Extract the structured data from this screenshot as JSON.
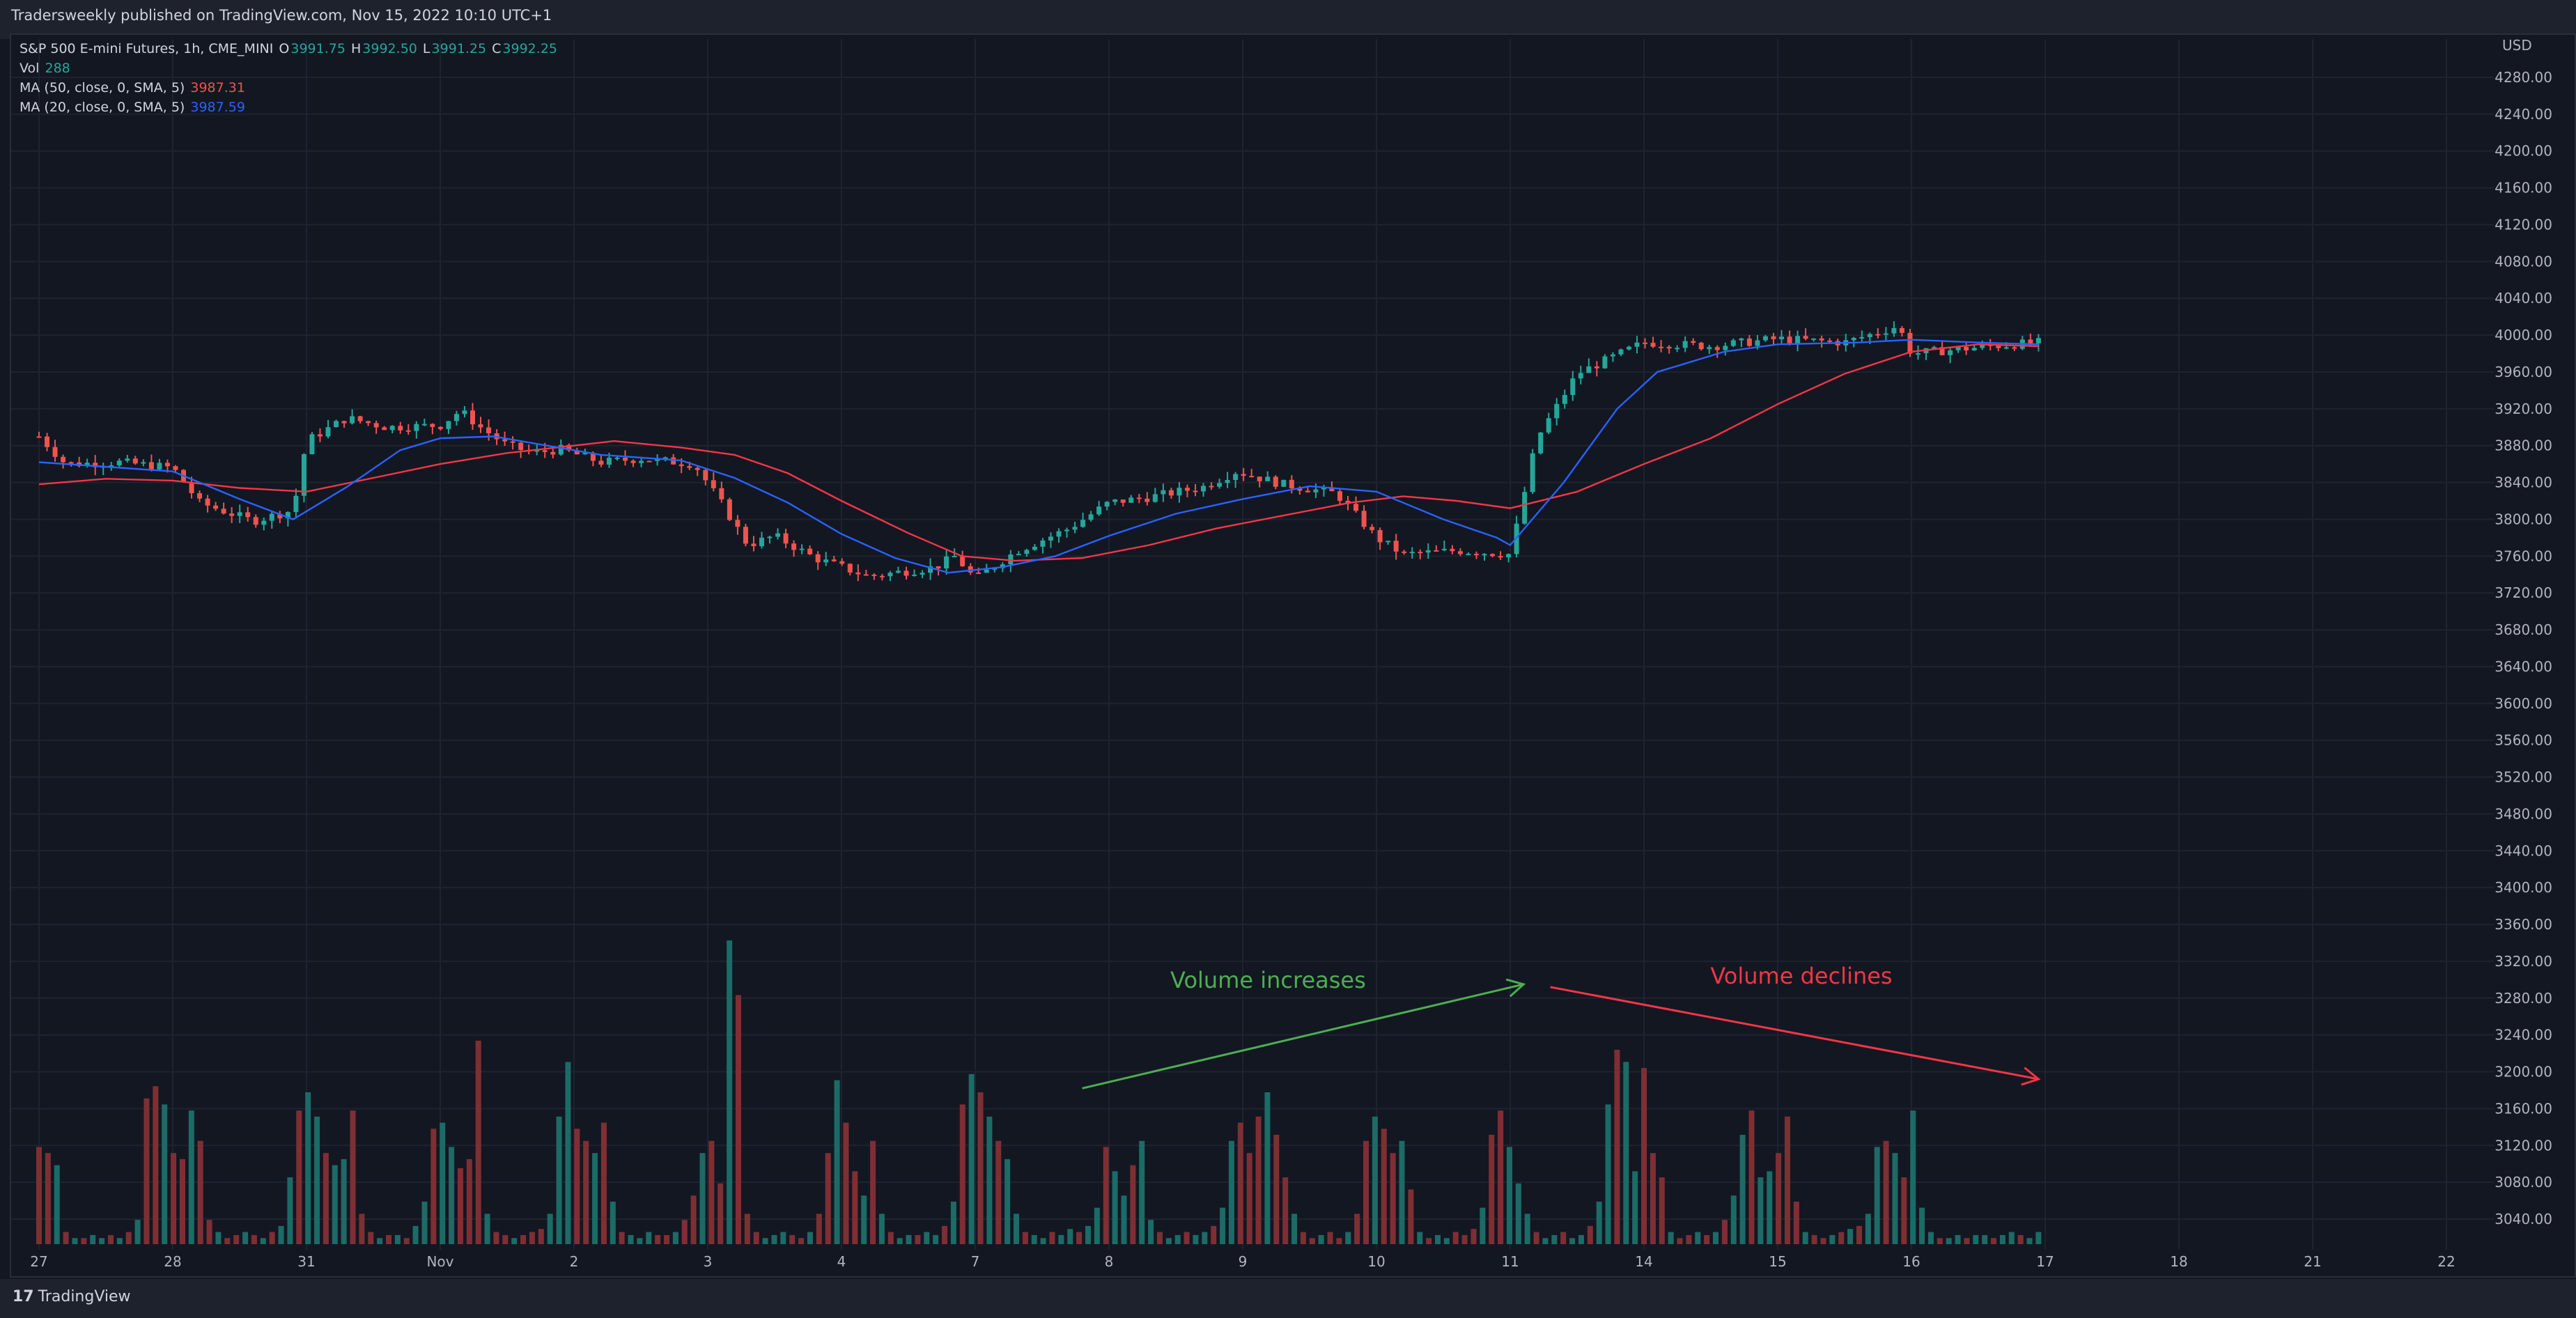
{
  "header": {
    "published": "Tradersweekly published on TradingView.com, Nov 15, 2022 10:10 UTC+1"
  },
  "legend": {
    "symbol": "S&P 500 E-mini Futures, 1h, CME_MINI",
    "o_label": "O",
    "o": "3991.75",
    "h_label": "H",
    "h": "3992.50",
    "l_label": "L",
    "l": "3991.25",
    "c_label": "C",
    "c": "3992.25",
    "vol_label": "Vol",
    "vol": "288",
    "ma50_label": "MA (50, close, 0, SMA, 5)",
    "ma50": "3987.31",
    "ma20_label": "MA (20, close, 0, SMA, 5)",
    "ma20": "3987.59"
  },
  "footer": {
    "logo_text": "TradingView",
    "logo_mark": "17"
  },
  "colors": {
    "up": "#26a69a",
    "down": "#ef5350",
    "ma50": "#f23645",
    "ma20": "#2962ff",
    "bg": "#131722",
    "grid": "#1f2330"
  },
  "chart_data": {
    "type": "candlestick",
    "symbol": "S&P 500 E-mini Futures",
    "interval": "1h",
    "currency": "USD",
    "yticks": [
      "4280.00",
      "4240.00",
      "4200.00",
      "4160.00",
      "4120.00",
      "4080.00",
      "4040.00",
      "4000.00",
      "3960.00",
      "3920.00",
      "3880.00",
      "3840.00",
      "3800.00",
      "3760.00",
      "3720.00",
      "3680.00",
      "3640.00",
      "3600.00",
      "3560.00",
      "3520.00",
      "3480.00",
      "3440.00",
      "3400.00",
      "3360.00",
      "3320.00",
      "3280.00",
      "3240.00",
      "3200.00",
      "3160.00",
      "3120.00",
      "3080.00",
      "3040.00"
    ],
    "ylim": [
      3020,
      4300
    ],
    "xticks": [
      "27",
      "28",
      "31",
      "Nov",
      "2",
      "3",
      "4",
      "7",
      "8",
      "9",
      "10",
      "11",
      "14",
      "15",
      "16",
      "17",
      "18",
      "21",
      "22"
    ],
    "grid": true,
    "close_path": [
      [
        0,
        3890
      ],
      [
        0.2,
        3860
      ],
      [
        0.6,
        3862
      ],
      [
        1,
        3856
      ],
      [
        1.2,
        3818
      ],
      [
        1.6,
        3798
      ],
      [
        1.9,
        3810
      ],
      [
        2,
        3885
      ],
      [
        2.3,
        3910
      ],
      [
        2.6,
        3900
      ],
      [
        3,
        3902
      ],
      [
        3.15,
        3918
      ],
      [
        3.3,
        3900
      ],
      [
        3.5,
        3880
      ],
      [
        3.7,
        3872
      ],
      [
        3.9,
        3876
      ],
      [
        4.2,
        3862
      ],
      [
        4.5,
        3866
      ],
      [
        4.9,
        3860
      ],
      [
        5.1,
        3818
      ],
      [
        5.3,
        3772
      ],
      [
        5.5,
        3782
      ],
      [
        5.8,
        3758
      ],
      [
        6.2,
        3738
      ],
      [
        6.7,
        3748
      ],
      [
        6.85,
        3760
      ],
      [
        7,
        3735
      ],
      [
        7.3,
        3765
      ],
      [
        7.7,
        3790
      ],
      [
        8,
        3818
      ],
      [
        8.3,
        3824
      ],
      [
        8.7,
        3835
      ],
      [
        8.95,
        3852
      ],
      [
        9.3,
        3838
      ],
      [
        9.7,
        3828
      ],
      [
        10,
        3780
      ],
      [
        10.2,
        3762
      ],
      [
        10.6,
        3766
      ],
      [
        11,
        3762
      ],
      [
        11.2,
        3888
      ],
      [
        11.5,
        3958
      ],
      [
        12,
        3992
      ],
      [
        12.5,
        3988
      ],
      [
        13,
        3996
      ],
      [
        13.5,
        3992
      ],
      [
        13.9,
        4010
      ],
      [
        14,
        3980
      ],
      [
        14.3,
        3984
      ],
      [
        14.6,
        3988
      ],
      [
        14.95,
        3992
      ]
    ],
    "ma20_path": [
      [
        0,
        3862
      ],
      [
        1,
        3852
      ],
      [
        1.5,
        3822
      ],
      [
        1.9,
        3800
      ],
      [
        2.3,
        3835
      ],
      [
        2.7,
        3875
      ],
      [
        3,
        3888
      ],
      [
        3.4,
        3890
      ],
      [
        4.2,
        3870
      ],
      [
        4.8,
        3864
      ],
      [
        5.2,
        3845
      ],
      [
        5.6,
        3818
      ],
      [
        6,
        3784
      ],
      [
        6.4,
        3758
      ],
      [
        6.8,
        3742
      ],
      [
        7.2,
        3748
      ],
      [
        7.6,
        3760
      ],
      [
        8,
        3782
      ],
      [
        8.5,
        3806
      ],
      [
        9,
        3822
      ],
      [
        9.5,
        3836
      ],
      [
        10,
        3830
      ],
      [
        10.5,
        3800
      ],
      [
        10.9,
        3780
      ],
      [
        11,
        3772
      ],
      [
        11.4,
        3840
      ],
      [
        11.8,
        3920
      ],
      [
        12.1,
        3960
      ],
      [
        12.6,
        3982
      ],
      [
        13,
        3990
      ],
      [
        13.6,
        3992
      ],
      [
        14,
        3995
      ],
      [
        14.5,
        3992
      ],
      [
        14.95,
        3990
      ]
    ],
    "ma50_path": [
      [
        0,
        3838
      ],
      [
        0.5,
        3844
      ],
      [
        1,
        3842
      ],
      [
        1.5,
        3834
      ],
      [
        2,
        3830
      ],
      [
        2.5,
        3845
      ],
      [
        3,
        3860
      ],
      [
        3.5,
        3872
      ],
      [
        4,
        3880
      ],
      [
        4.3,
        3885
      ],
      [
        4.8,
        3878
      ],
      [
        5.2,
        3870
      ],
      [
        5.6,
        3850
      ],
      [
        6,
        3820
      ],
      [
        6.5,
        3785
      ],
      [
        6.9,
        3760
      ],
      [
        7.3,
        3755
      ],
      [
        7.8,
        3758
      ],
      [
        8.3,
        3772
      ],
      [
        8.8,
        3790
      ],
      [
        9.3,
        3804
      ],
      [
        9.8,
        3818
      ],
      [
        10.2,
        3825
      ],
      [
        10.6,
        3820
      ],
      [
        11,
        3812
      ],
      [
        11.5,
        3830
      ],
      [
        12,
        3860
      ],
      [
        12.5,
        3888
      ],
      [
        13,
        3925
      ],
      [
        13.5,
        3958
      ],
      [
        14,
        3982
      ],
      [
        14.5,
        3990
      ],
      [
        14.95,
        3988
      ]
    ],
    "volume": {
      "max_bar_fraction": 1.0,
      "heights": [
        0.32,
        0.3,
        0.26,
        0.04,
        0.02,
        0.02,
        0.03,
        0.02,
        0.03,
        0.02,
        0.04,
        0.08,
        0.48,
        0.52,
        0.46,
        0.3,
        0.28,
        0.44,
        0.34,
        0.08,
        0.04,
        0.02,
        0.03,
        0.04,
        0.03,
        0.02,
        0.04,
        0.06,
        0.22,
        0.44,
        0.5,
        0.42,
        0.3,
        0.26,
        0.28,
        0.44,
        0.1,
        0.04,
        0.02,
        0.03,
        0.03,
        0.02,
        0.06,
        0.14,
        0.38,
        0.4,
        0.32,
        0.25,
        0.28,
        0.67,
        0.1,
        0.04,
        0.03,
        0.02,
        0.03,
        0.04,
        0.05,
        0.1,
        0.42,
        0.6,
        0.38,
        0.34,
        0.3,
        0.4,
        0.14,
        0.04,
        0.03,
        0.02,
        0.04,
        0.03,
        0.03,
        0.04,
        0.08,
        0.16,
        0.3,
        0.34,
        0.2,
        1.0,
        0.82,
        0.1,
        0.04,
        0.02,
        0.03,
        0.04,
        0.03,
        0.02,
        0.04,
        0.1,
        0.3,
        0.54,
        0.4,
        0.24,
        0.16,
        0.34,
        0.1,
        0.04,
        0.02,
        0.03,
        0.03,
        0.04,
        0.03,
        0.06,
        0.14,
        0.46,
        0.56,
        0.5,
        0.42,
        0.34,
        0.28,
        0.1,
        0.04,
        0.03,
        0.02,
        0.04,
        0.03,
        0.05,
        0.04,
        0.06,
        0.12,
        0.32,
        0.24,
        0.16,
        0.26,
        0.34,
        0.08,
        0.04,
        0.02,
        0.03,
        0.04,
        0.03,
        0.04,
        0.06,
        0.12,
        0.34,
        0.4,
        0.3,
        0.42,
        0.5,
        0.36,
        0.22,
        0.1,
        0.04,
        0.02,
        0.03,
        0.04,
        0.02,
        0.04,
        0.1,
        0.34,
        0.42,
        0.38,
        0.3,
        0.34,
        0.18,
        0.04,
        0.02,
        0.03,
        0.02,
        0.04,
        0.03,
        0.05,
        0.12,
        0.36,
        0.44,
        0.32,
        0.2,
        0.1,
        0.04,
        0.02,
        0.03,
        0.04,
        0.02,
        0.03,
        0.06,
        0.14,
        0.46,
        0.64,
        0.6,
        0.24,
        0.58,
        0.3,
        0.22,
        0.04,
        0.02,
        0.03,
        0.04,
        0.03,
        0.04,
        0.08,
        0.16,
        0.36,
        0.44,
        0.22,
        0.24,
        0.3,
        0.42,
        0.14,
        0.04,
        0.03,
        0.02,
        0.03,
        0.04,
        0.05,
        0.06,
        0.1,
        0.32,
        0.34,
        0.3,
        0.22,
        0.44,
        0.12,
        0.04,
        0.02,
        0.02,
        0.03,
        0.02,
        0.03,
        0.03,
        0.02,
        0.03,
        0.04,
        0.03,
        0.02,
        0.04
      ]
    },
    "annotations": [
      {
        "text": "Volume increases",
        "color": "#4caf50",
        "arrow_from": [
          7.8,
          3182
        ],
        "arrow_to": [
          11.1,
          3295
        ]
      },
      {
        "text": "Volume declines",
        "color": "#f23645",
        "arrow_from": [
          11.3,
          3292
        ],
        "arrow_to": [
          14.95,
          3192
        ]
      }
    ]
  }
}
